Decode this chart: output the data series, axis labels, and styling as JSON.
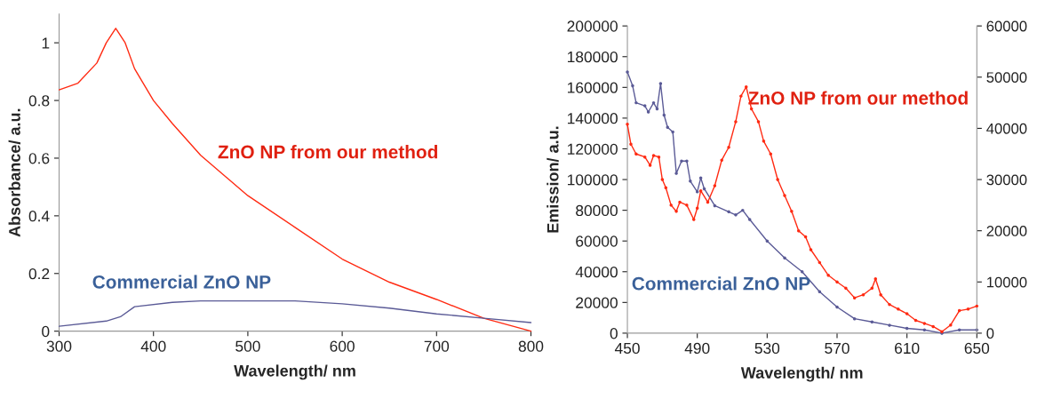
{
  "chart_data": [
    {
      "type": "line",
      "xlabel": "Wavelength/ nm",
      "ylabel": "Absorbance/ a.u.",
      "xlim": [
        300,
        800
      ],
      "xticks": [
        300,
        400,
        500,
        600,
        700,
        800
      ],
      "ylim": [
        0,
        1.1
      ],
      "yticks": [
        0,
        0.2,
        0.4,
        0.6,
        0.8,
        1
      ],
      "grid": false,
      "legend": false,
      "marker": "none",
      "line_style": "solid",
      "series": [
        {
          "name": "ZnO NP from our method",
          "color": "#ff2a12",
          "x": [
            300,
            320,
            340,
            350,
            360,
            370,
            380,
            400,
            420,
            450,
            500,
            550,
            600,
            650,
            700,
            750,
            800
          ],
          "values": [
            0.837,
            0.86,
            0.93,
            1.0,
            1.05,
            1.0,
            0.91,
            0.8,
            0.72,
            0.61,
            0.47,
            0.36,
            0.25,
            0.17,
            0.11,
            0.045,
            0
          ]
        },
        {
          "name": "Commercial ZnO NP",
          "color": "#5a5a96",
          "x": [
            300,
            350,
            365,
            380,
            420,
            450,
            550,
            600,
            650,
            700,
            750,
            800
          ],
          "values": [
            0.017,
            0.035,
            0.05,
            0.085,
            0.1,
            0.105,
            0.105,
            0.095,
            0.08,
            0.06,
            0.045,
            0.03
          ]
        }
      ]
    },
    {
      "type": "line",
      "xlabel": "Wavelength/ nm",
      "ylabel": "Emission/ a.u.",
      "xlim": [
        450,
        650
      ],
      "xticks": [
        450,
        490,
        530,
        570,
        610,
        650
      ],
      "ylim": [
        0,
        200000
      ],
      "yticks": [
        0,
        20000,
        40000,
        60000,
        80000,
        100000,
        120000,
        140000,
        160000,
        180000,
        200000
      ],
      "y2lim": [
        0,
        60000
      ],
      "y2ticks": [
        0,
        10000,
        20000,
        30000,
        40000,
        50000,
        60000
      ],
      "grid": false,
      "legend": false,
      "marker": "circle",
      "line_style": "solid",
      "series": [
        {
          "name": "ZnO NP from our method",
          "color": "#ff2a12",
          "axis": "y2",
          "x": [
            450,
            452,
            455,
            460,
            463,
            465,
            468,
            470,
            472,
            475,
            478,
            480,
            484,
            488,
            490,
            492,
            496,
            500,
            504,
            508,
            512,
            515,
            518,
            521,
            525,
            528,
            532,
            536,
            540,
            544,
            548,
            552,
            555,
            560,
            565,
            570,
            575,
            580,
            585,
            590,
            592,
            595,
            600,
            605,
            610,
            615,
            620,
            625,
            630,
            635,
            640,
            645,
            650
          ],
          "values": [
            40800,
            36900,
            35000,
            34400,
            32800,
            34700,
            34400,
            30000,
            28400,
            25000,
            23800,
            25600,
            25000,
            22200,
            24400,
            27800,
            25600,
            28800,
            33800,
            36300,
            41300,
            46300,
            48100,
            43800,
            41300,
            37500,
            35000,
            30000,
            26900,
            23800,
            20000,
            18800,
            16300,
            13800,
            11300,
            10000,
            8800,
            6900,
            7500,
            8800,
            10600,
            7500,
            5600,
            4700,
            3800,
            2500,
            1900,
            1300,
            300,
            1600,
            4400,
            4700,
            5300
          ]
        },
        {
          "name": "Commercial ZnO NP",
          "color": "#5a5a96",
          "x": [
            450,
            453,
            455,
            460,
            462,
            465,
            467,
            469,
            471,
            473,
            476,
            478,
            481,
            484,
            486,
            490,
            492,
            494,
            500,
            508,
            512,
            516,
            520,
            530,
            540,
            550,
            560,
            570,
            580,
            590,
            600,
            610,
            620,
            630,
            640,
            650
          ],
          "values": [
            170000,
            161000,
            150000,
            148000,
            144000,
            150000,
            146000,
            162500,
            142000,
            134000,
            131000,
            104000,
            112000,
            112000,
            99000,
            92000,
            101000,
            94000,
            83000,
            79000,
            77000,
            80000,
            74000,
            60000,
            49000,
            40000,
            27000,
            17000,
            9400,
            7300,
            5200,
            3100,
            2100,
            0,
            2100,
            2100
          ]
        }
      ]
    }
  ]
}
